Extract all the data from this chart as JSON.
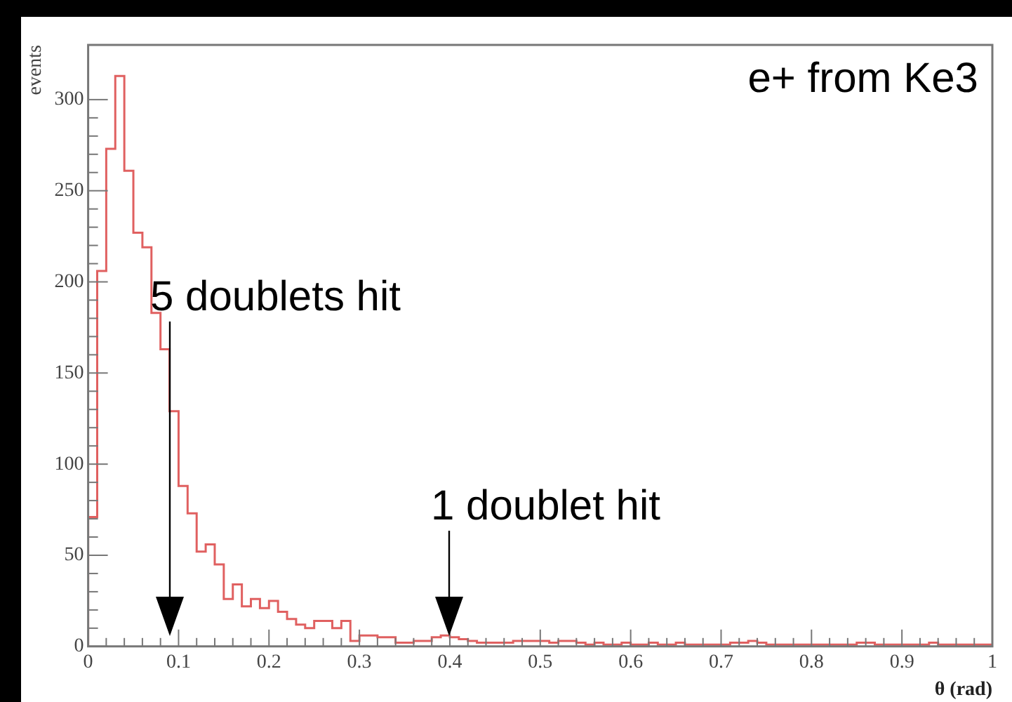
{
  "chart_data": {
    "type": "histogram",
    "xlabel": "θ (rad)",
    "ylabel": "events",
    "bins": [
      0,
      0.01,
      0.02,
      0.03,
      0.04,
      0.05,
      0.06,
      0.07,
      0.08,
      0.09,
      0.1,
      0.11,
      0.12,
      0.13,
      0.14,
      0.15,
      0.16,
      0.17,
      0.18,
      0.19,
      0.2,
      0.21,
      0.22,
      0.23,
      0.24,
      0.25,
      0.26,
      0.27,
      0.28,
      0.29,
      0.3,
      0.31,
      0.32,
      0.33,
      0.34,
      0.35,
      0.36,
      0.37,
      0.38,
      0.39,
      0.4,
      0.41,
      0.42,
      0.43,
      0.44,
      0.45,
      0.46,
      0.47,
      0.48,
      0.49,
      0.5,
      0.51,
      0.52,
      0.53,
      0.54,
      0.55,
      0.56,
      0.57,
      0.58,
      0.59,
      0.6,
      0.61,
      0.62,
      0.63,
      0.64,
      0.65,
      0.66,
      0.67,
      0.68,
      0.69,
      0.7,
      0.71,
      0.72,
      0.73,
      0.74,
      0.75,
      0.76,
      0.77,
      0.78,
      0.79,
      0.8,
      0.81,
      0.82,
      0.83,
      0.84,
      0.85,
      0.86,
      0.87,
      0.88,
      0.89,
      0.9,
      0.91,
      0.92,
      0.93,
      0.94,
      0.95,
      0.96,
      0.97,
      0.98,
      0.99,
      1
    ],
    "values": [
      71,
      206,
      273,
      313,
      261,
      227,
      219,
      183,
      163,
      129,
      88,
      73,
      52,
      56,
      45,
      26,
      34,
      22,
      26,
      21,
      25,
      19,
      15,
      12,
      10,
      14,
      14,
      10,
      14,
      3,
      6,
      6,
      5,
      5,
      2,
      2,
      3,
      3,
      5,
      6,
      5,
      4,
      3,
      2,
      2,
      2,
      2,
      3,
      3,
      3,
      3,
      2,
      3,
      3,
      2,
      1,
      2,
      1,
      1,
      2,
      1,
      1,
      2,
      1,
      1,
      2,
      1,
      1,
      1,
      1,
      1,
      2,
      2,
      3,
      2,
      1,
      1,
      1,
      1,
      1,
      1,
      1,
      1,
      1,
      1,
      2,
      2,
      1,
      1,
      1,
      1,
      1,
      1,
      2,
      1,
      1,
      1,
      1,
      1,
      1
    ],
    "color": "#e06060",
    "xlim": [
      0,
      1
    ],
    "ylim": [
      0,
      330
    ],
    "xticks": [
      0,
      0.1,
      0.2,
      0.3,
      0.4,
      0.5,
      0.6,
      0.7,
      0.8,
      0.9,
      1
    ],
    "yticks": [
      0,
      50,
      100,
      150,
      200,
      250,
      300
    ],
    "grid": false,
    "annotations": [
      "e+ from Ke3",
      "5 doublets hit",
      "1 doublet hit"
    ]
  }
}
